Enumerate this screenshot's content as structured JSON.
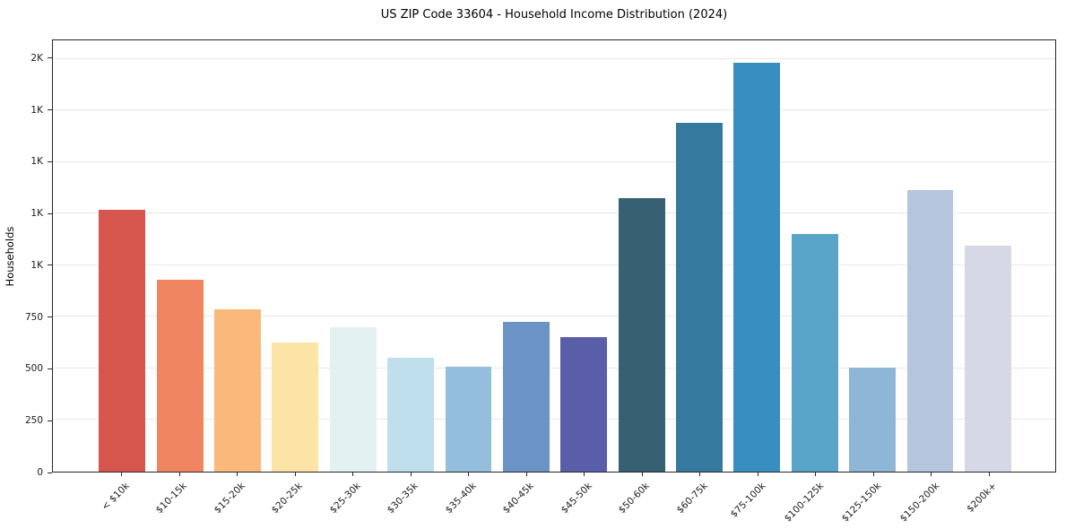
{
  "chart_data": {
    "type": "bar",
    "title": "US ZIP Code 33604 - Household Income Distribution (2024)",
    "xlabel": "",
    "ylabel": "Households",
    "categories": [
      "< $10k",
      "$10-15k",
      "$15-20k",
      "$20-25k",
      "$25-30k",
      "$30-35k",
      "$35-40k",
      "$40-45k",
      "$45-50k",
      "$50-60k",
      "$60-75k",
      "$75-100k",
      "$100-125k",
      "$125-150k",
      "$150-200k",
      "$200k+"
    ],
    "values": [
      1270,
      930,
      785,
      625,
      700,
      550,
      510,
      725,
      650,
      1325,
      1690,
      1980,
      1150,
      505,
      1365,
      1095
    ],
    "bar_colors": [
      "#d6564e",
      "#f08562",
      "#fab97a",
      "#fce3a6",
      "#e4f1f2",
      "#bedfeb",
      "#94bfdc",
      "#6b93c6",
      "#5a5ea8",
      "#366172",
      "#35799f",
      "#388ec1",
      "#59a4c9",
      "#8eb6d6",
      "#b5c5de",
      "#d7d8e6"
    ],
    "ylim": [
      0,
      2090
    ],
    "yticks": [
      {
        "value": 0,
        "label": "0"
      },
      {
        "value": 250,
        "label": "250"
      },
      {
        "value": 500,
        "label": "500"
      },
      {
        "value": 750,
        "label": "750"
      },
      {
        "value": 1000,
        "label": "1K"
      },
      {
        "value": 1250,
        "label": "1K"
      },
      {
        "value": 1500,
        "label": "1K"
      },
      {
        "value": 1750,
        "label": "1K"
      },
      {
        "value": 2000,
        "label": "2K"
      }
    ],
    "grid": "horizontal",
    "grid_color": "#e8e8e8",
    "axis_color": "#262626",
    "legend": null
  }
}
